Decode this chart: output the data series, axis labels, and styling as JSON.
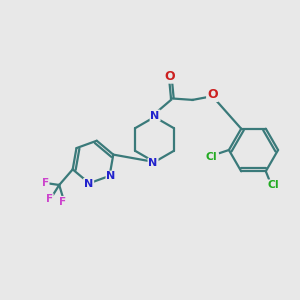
{
  "bg_color": "#e8e8e8",
  "bond_color": "#3a7a7a",
  "n_color": "#2222cc",
  "o_color": "#cc2020",
  "cl_color": "#22aa22",
  "f_color": "#cc44cc",
  "line_width": 1.6,
  "figsize": [
    3.0,
    3.0
  ],
  "dpi": 100,
  "xlim": [
    0,
    10
  ],
  "ylim": [
    0,
    10
  ]
}
